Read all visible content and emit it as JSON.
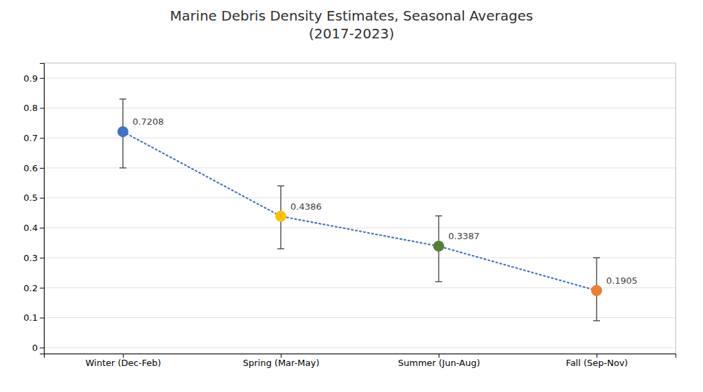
{
  "chart_data": {
    "type": "line",
    "title": "Marine Debris Density Estimates, Seasonal Averages\n(2017-2023)",
    "categories": [
      "Winter (Dec-Feb)",
      "Spring (Mar-May)",
      "Summer (Jun-Aug)",
      "Fall (Sep-Nov)"
    ],
    "values": [
      0.7208,
      0.4386,
      0.3387,
      0.1905
    ],
    "error_upper": [
      0.83,
      0.54,
      0.44,
      0.3
    ],
    "error_lower": [
      0.6,
      0.33,
      0.22,
      0.09
    ],
    "color": "#4472C4",
    "colors": [
      "#4472C4",
      "#FFC000",
      "#538135",
      "#ED7D31"
    ],
    "line_style": "dotted",
    "marker": "circle",
    "data_labels": true,
    "ylim": [
      -0.02,
      0.95
    ],
    "yticks": [
      0,
      0.1,
      0.2,
      0.3,
      0.4,
      0.5,
      0.6,
      0.7,
      0.8,
      0.9
    ],
    "grid": true
  }
}
